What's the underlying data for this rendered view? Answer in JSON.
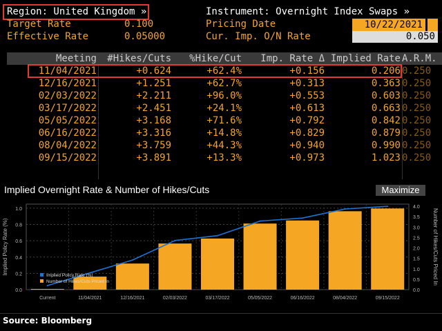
{
  "header": {
    "region_label": "Region: United Kingdom »",
    "instrument_label": "Instrument: Overnight Index Swaps »",
    "target_rate_label": "Target Rate",
    "target_rate_value": "0.100",
    "effective_rate_label": "Effective Rate",
    "effective_rate_value": "0.05000",
    "pricing_date_label": "Pricing Date",
    "pricing_date_value": "10/22/2021",
    "cur_imp_label": "Cur. Imp. O/N Rate",
    "cur_imp_value": "0.050",
    "accent": "#f5a623",
    "highlight": "#e53935"
  },
  "table": {
    "columns": [
      "Meeting",
      "#Hikes/Cuts",
      "%Hike/Cut",
      "Imp. Rate Δ",
      "Implied Rate",
      "A.R.M."
    ],
    "rows": [
      [
        "11/04/2021",
        "+0.624",
        "+62.4%",
        "+0.156",
        "0.206",
        "0.250"
      ],
      [
        "12/16/2021",
        "+1.251",
        "+62.7%",
        "+0.313",
        "0.363",
        "0.250"
      ],
      [
        "02/03/2022",
        "+2.211",
        "+96.0%",
        "+0.553",
        "0.603",
        "0.250"
      ],
      [
        "03/17/2022",
        "+2.451",
        "+24.1%",
        "+0.613",
        "0.663",
        "0.250"
      ],
      [
        "05/05/2022",
        "+3.168",
        "+71.6%",
        "+0.792",
        "0.842",
        "0.250"
      ],
      [
        "06/16/2022",
        "+3.316",
        "+14.8%",
        "+0.829",
        "0.879",
        "0.250"
      ],
      [
        "08/04/2022",
        "+3.759",
        "+44.3%",
        "+0.940",
        "0.990",
        "0.250"
      ],
      [
        "09/15/2022",
        "+3.891",
        "+13.3%",
        "+0.973",
        "1.023",
        "0.250"
      ]
    ]
  },
  "chart_panel": {
    "title": "Implied Overnight Rate & Number of Hikes/Cuts",
    "maximize_label": "Maximize"
  },
  "chart_data": {
    "type": "bar",
    "categories": [
      "Current",
      "11/04/2021",
      "12/16/2021",
      "02/03/2022",
      "03/17/2022",
      "05/05/2022",
      "06/16/2022",
      "08/04/2022",
      "09/15/2022"
    ],
    "series": [
      {
        "name": "Implied Policy Rate (%)",
        "type": "line",
        "axis": "left",
        "color": "#1e73d6",
        "values": [
          0.05,
          0.206,
          0.363,
          0.603,
          0.663,
          0.842,
          0.879,
          0.99,
          1.023
        ]
      },
      {
        "name": "Number of Hikes/Cuts Priced In",
        "type": "bar",
        "axis": "right",
        "color": "#f5a623",
        "values": [
          0,
          0.624,
          1.251,
          2.211,
          2.451,
          3.168,
          3.316,
          3.759,
          3.891
        ]
      }
    ],
    "ylabel": "Implied Policy Rate (%)",
    "y2label": "Number of Hikes/Cuts Priced In",
    "ylim": [
      0,
      1.05
    ],
    "y2lim": [
      0,
      4.1
    ],
    "yticks": [
      "0.0",
      "0.2",
      "0.4",
      "0.6",
      "0.8",
      "1.0"
    ],
    "y2ticks": [
      "0.0",
      "0.5",
      "1.0",
      "1.5",
      "2.0",
      "2.5",
      "3.0",
      "3.5",
      "4.0"
    ],
    "legend_position": "bottom-left",
    "grid": true
  },
  "footer": {
    "source": "Source: Bloomberg"
  }
}
